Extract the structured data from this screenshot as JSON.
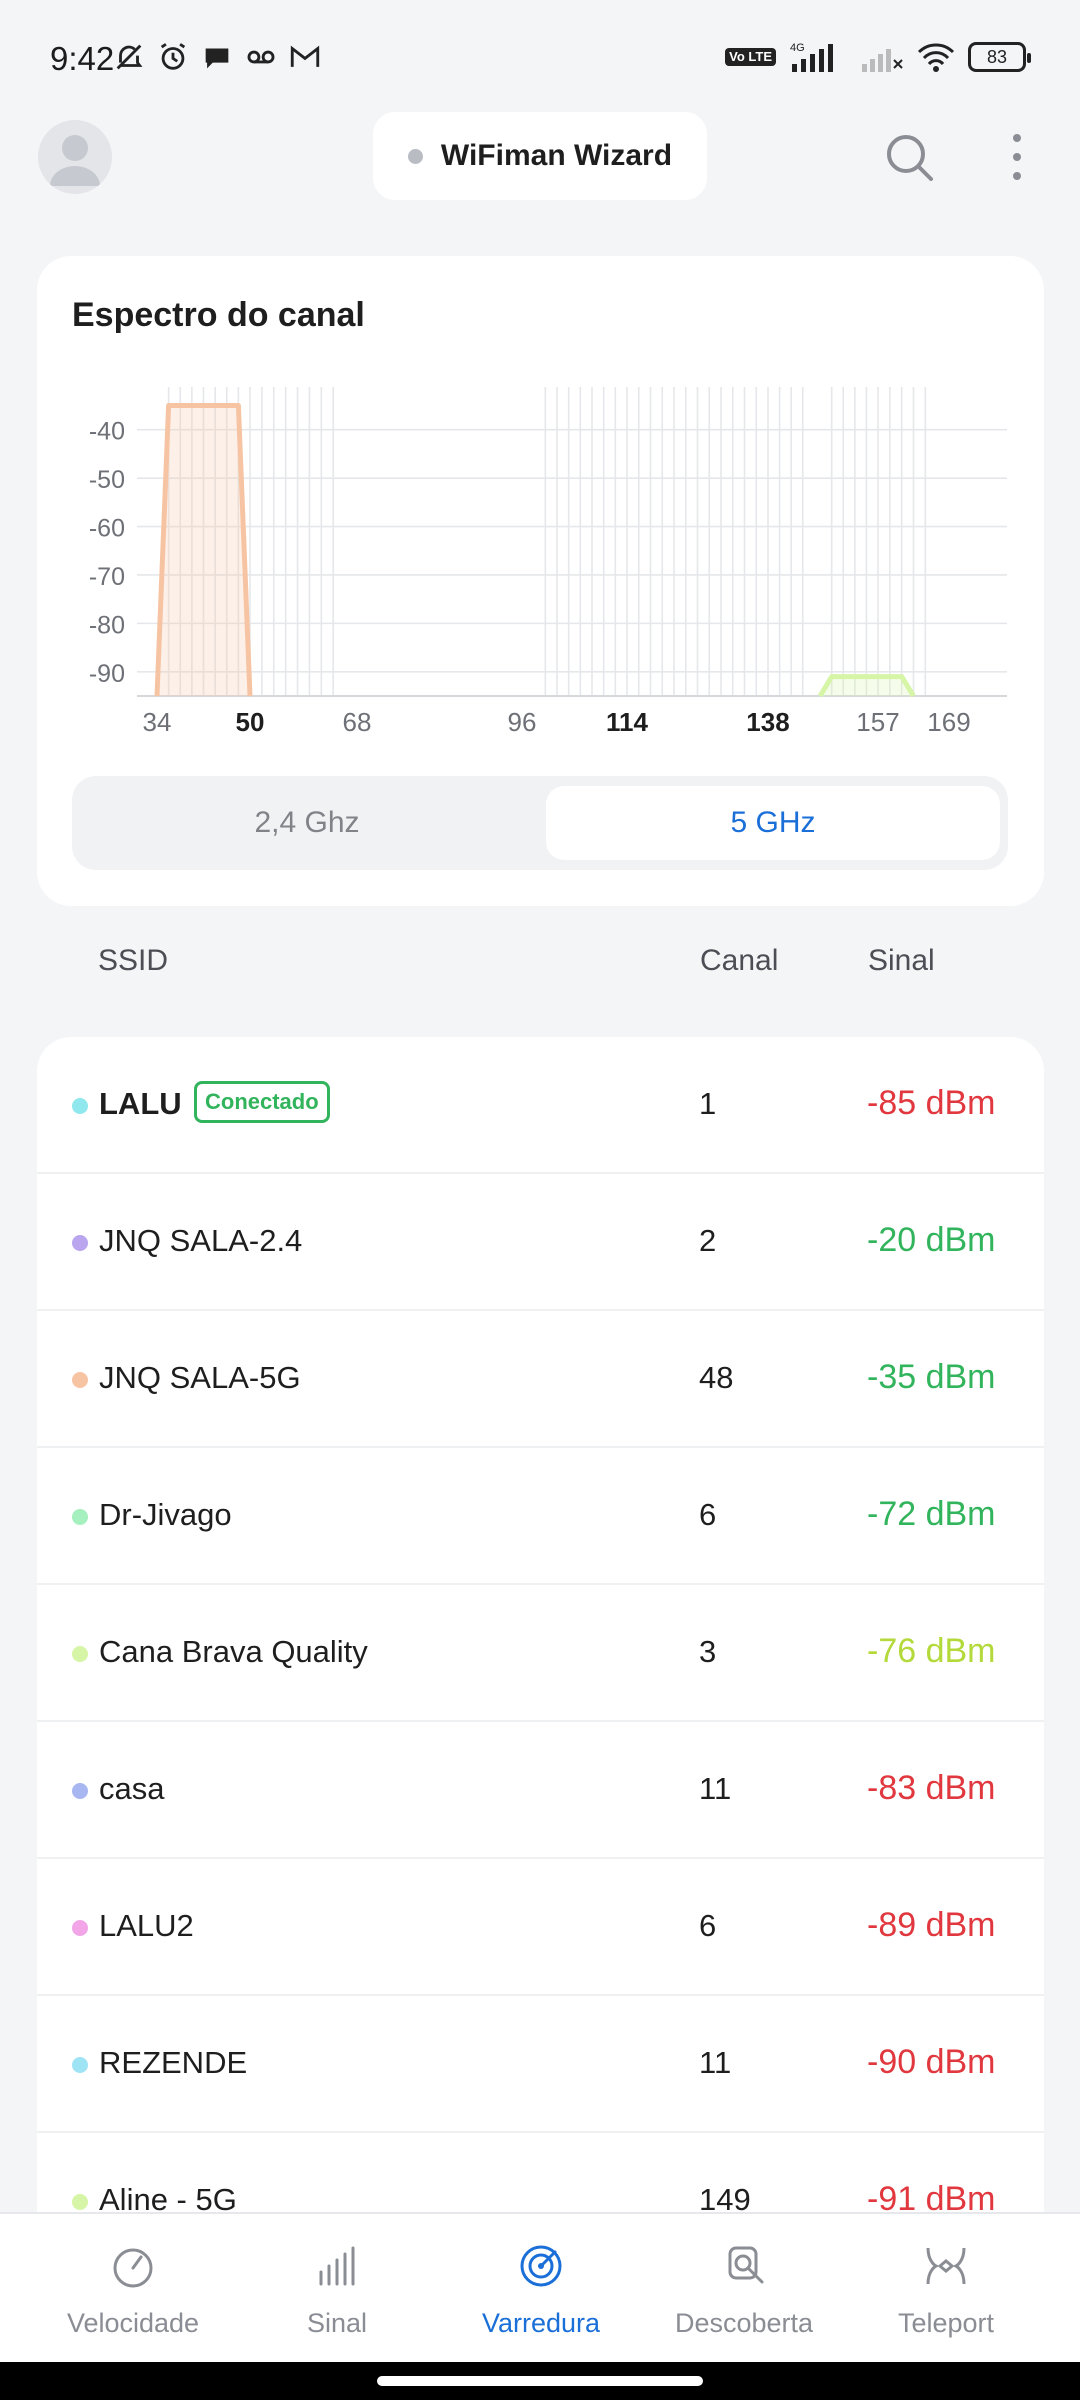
{
  "status_bar": {
    "time": "9:42",
    "network": "4G",
    "battery": "83",
    "volte": "Vo LTE"
  },
  "header": {
    "title": "WiFiman Wizard",
    "status_dot_color": "#b9bcc3"
  },
  "spectrum": {
    "title": "Espectro do canal",
    "tabs": [
      {
        "label": "2,4 Ghz",
        "selected": false
      },
      {
        "label": "5 GHz",
        "selected": true
      }
    ]
  },
  "chart_data": {
    "type": "area",
    "ylim": [
      -95,
      -32
    ],
    "y_ticks": [
      -40,
      -50,
      -60,
      -70,
      -80,
      -90
    ],
    "x_ticks": [
      "34",
      "50",
      "68",
      "96",
      "114",
      "138",
      "157",
      "169"
    ],
    "x_ticks_bold": [
      "50",
      "114",
      "138"
    ],
    "grid": true,
    "series": [
      {
        "color": "#f6c4a3",
        "x": [
          34,
          36,
          48,
          50
        ],
        "y": [
          -95,
          -35,
          -35,
          -95
        ]
      },
      {
        "color": "#d6f5a6",
        "x": [
          147,
          149,
          161,
          163
        ],
        "y": [
          -95,
          -91,
          -91,
          -95
        ]
      }
    ]
  },
  "table": {
    "col_ssid": "SSID",
    "col_canal": "Canal",
    "col_sinal": "Sinal",
    "rows": [
      {
        "ssid": "LALU",
        "canal": "1",
        "sinal": "-85 dBm",
        "dot": "#8fe8ee",
        "sinal_color": "#e0383e",
        "badge": "Conectado",
        "bold": true
      },
      {
        "ssid": "JNQ SALA-2.4",
        "canal": "2",
        "sinal": "-20 dBm",
        "dot": "#b9a6ef",
        "sinal_color": "#32b45c"
      },
      {
        "ssid": "JNQ SALA-5G",
        "canal": "48",
        "sinal": "-35 dBm",
        "dot": "#f6c4a3",
        "sinal_color": "#32b45c"
      },
      {
        "ssid": "Dr-Jivago",
        "canal": "6",
        "sinal": "-72 dBm",
        "dot": "#a6efbf",
        "sinal_color": "#32b45c"
      },
      {
        "ssid": "Cana Brava Quality",
        "canal": "3",
        "sinal": "-76 dBm",
        "dot": "#d6f5a6",
        "sinal_color": "#b4d93a"
      },
      {
        "ssid": "casa",
        "canal": "11",
        "sinal": "-83 dBm",
        "dot": "#a8b6f2",
        "sinal_color": "#e0383e"
      },
      {
        "ssid": "LALU2",
        "canal": "6",
        "sinal": "-89 dBm",
        "dot": "#f2a6e8",
        "sinal_color": "#e0383e"
      },
      {
        "ssid": "REZENDE",
        "canal": "11",
        "sinal": "-90 dBm",
        "dot": "#9fe4f4",
        "sinal_color": "#e0383e"
      },
      {
        "ssid": "Aline - 5G",
        "canal": "149",
        "sinal": "-91 dBm",
        "dot": "#d6f5a6",
        "sinal_color": "#e0383e"
      }
    ]
  },
  "bottom_nav": [
    {
      "label": "Velocidade",
      "icon": "speedometer-icon",
      "active": false
    },
    {
      "label": "Sinal",
      "icon": "signal-bars-icon",
      "active": false
    },
    {
      "label": "Varredura",
      "icon": "radar-icon",
      "active": true
    },
    {
      "label": "Descoberta",
      "icon": "device-search-icon",
      "active": false
    },
    {
      "label": "Teleport",
      "icon": "teleport-icon",
      "active": false
    }
  ],
  "colors": {
    "accent": "#1b6fd8",
    "good": "#32b45c",
    "bad": "#e0383e"
  }
}
